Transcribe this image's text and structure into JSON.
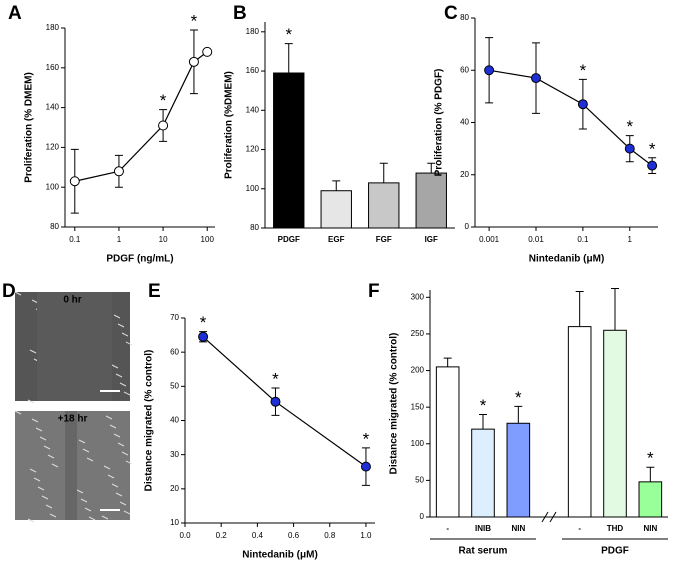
{
  "chart_data": [
    {
      "type": "line",
      "label": "A",
      "xlabel": "PDGF (ng/mL)",
      "ylabel": "Proliferation (% DMEM)",
      "xlog": true,
      "x": [
        0.1,
        1,
        10,
        50,
        100
      ],
      "series": [
        {
          "color": "#ffffff",
          "values": [
            103,
            108,
            131,
            163,
            168
          ],
          "errors": [
            16,
            8,
            8,
            16,
            null
          ],
          "significance": [
            null,
            null,
            "*",
            "*",
            null
          ]
        }
      ],
      "xlim": [
        0.06,
        150
      ],
      "xticks": [
        0.1,
        1,
        10,
        100
      ],
      "ylim": [
        80,
        180
      ],
      "yticks": [
        80,
        100,
        120,
        140,
        160,
        180
      ]
    },
    {
      "type": "bar",
      "label": "B",
      "ylabel": "Proliferation (%DMEM)",
      "categories": [
        "PDGF",
        "EGF",
        "FGF",
        "IGF"
      ],
      "values": [
        159,
        99,
        103,
        108
      ],
      "errors": [
        15,
        5,
        10,
        5
      ],
      "significance": [
        "*",
        null,
        null,
        null
      ],
      "colors": [
        "#000000",
        "#e6e6e6",
        "#c8c8c8",
        "#a6a6a6"
      ],
      "ylim": [
        80,
        185
      ],
      "yticks": [
        80,
        100,
        120,
        140,
        160,
        180
      ]
    },
    {
      "type": "line",
      "label": "C",
      "xlabel": "Nintedanib (μM)",
      "ylabel": "Proliferation (% PDGF)",
      "xlog": true,
      "x": [
        0.001,
        0.01,
        0.1,
        1,
        3
      ],
      "series": [
        {
          "color": "#1f2fd6",
          "values": [
            60,
            57,
            47,
            30,
            23.5
          ],
          "errors": [
            12.5,
            13.5,
            9.5,
            5,
            3
          ],
          "significance": [
            null,
            null,
            "*",
            "*",
            "*"
          ]
        }
      ],
      "xlim": [
        0.0005,
        4
      ],
      "xticks": [
        0.001,
        0.01,
        0.1,
        1
      ],
      "ylim": [
        0,
        80
      ],
      "yticks": [
        0,
        20,
        40,
        60,
        80
      ]
    },
    {
      "type": "image",
      "label": "D",
      "captions": [
        "0 hr",
        "+18 hr"
      ]
    },
    {
      "type": "line",
      "label": "E",
      "xlabel": "Nintedanib (μM)",
      "ylabel": "Distance migrated (% control)",
      "xlog": false,
      "x": [
        0.1,
        0.5,
        1.0
      ],
      "series": [
        {
          "color": "#1f2fd6",
          "values": [
            64.5,
            45.5,
            26.5
          ],
          "errors": [
            1.5,
            4,
            5.5
          ],
          "significance": [
            "*",
            "*",
            "*"
          ]
        }
      ],
      "xlim": [
        0,
        1.05
      ],
      "xticks": [
        {
          "value": 0,
          "label": "0.0"
        },
        0.2,
        0.4,
        0.6,
        0.8,
        {
          "value": 1,
          "label": "1.0"
        }
      ],
      "ylim": [
        10,
        70
      ],
      "yticks": [
        10,
        20,
        30,
        40,
        50,
        60,
        70
      ]
    },
    {
      "type": "bar",
      "label": "F",
      "ylabel": "Distance migrated (% control)",
      "categories": [
        "-",
        "INIB",
        "NIN",
        "-",
        "THD",
        "NIN"
      ],
      "groups": [
        "Rat serum",
        "PDGF"
      ],
      "values": [
        205,
        120,
        128,
        260,
        255,
        48
      ],
      "errors": [
        12,
        20,
        23,
        48,
        57,
        20
      ],
      "significance": [
        null,
        "*",
        "*",
        null,
        null,
        "*"
      ],
      "colors": [
        "#ffffff",
        "#ddeeff",
        "#7f9dff",
        "#ffffff",
        "#e2fae2",
        "#99ff99"
      ],
      "ylim": [
        0,
        310
      ],
      "yticks": [
        0,
        50,
        100,
        150,
        200,
        250,
        300
      ]
    }
  ]
}
